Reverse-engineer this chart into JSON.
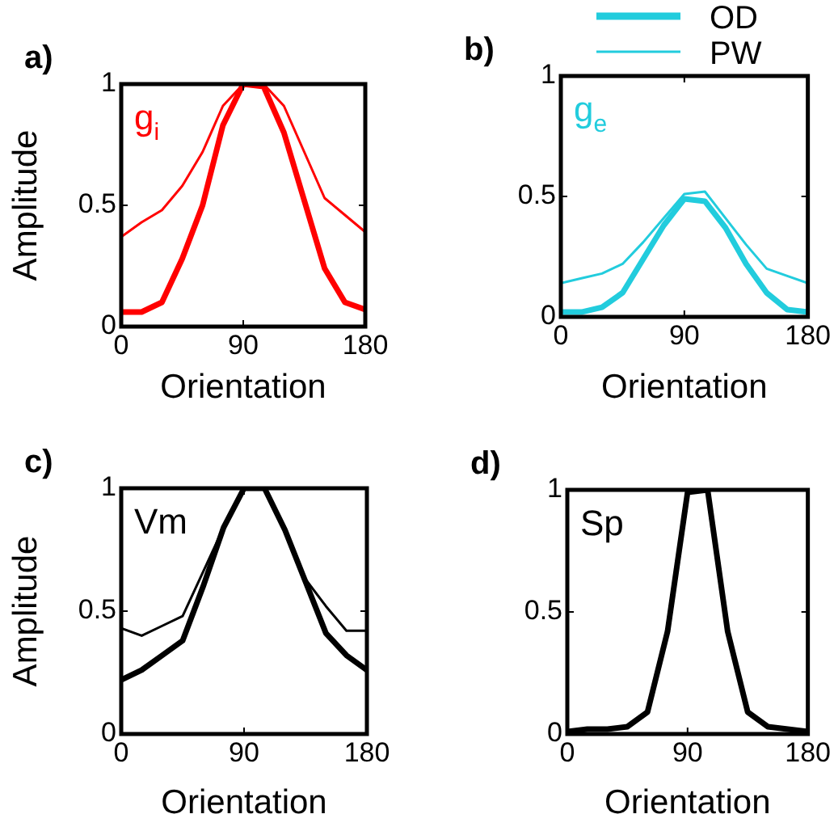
{
  "chart_data": [
    {
      "type": "line",
      "title": "a)",
      "xlabel": "Orientation",
      "ylabel": "Amplitude",
      "annotations": [
        "g$_{i}$"
      ],
      "x": [
        0,
        15,
        30,
        45,
        60,
        75,
        90,
        105,
        120,
        135,
        150,
        165,
        180
      ],
      "xlim": [
        0,
        180
      ],
      "xticks": [
        0,
        90,
        180
      ],
      "ylim": [
        0,
        1
      ],
      "yticks": [
        0,
        0.5,
        1
      ],
      "marker": "none",
      "series": [
        {
          "color": "#ff0000",
          "values": [
            0.06,
            0.06,
            0.1,
            0.28,
            0.5,
            0.83,
            1,
            0.99,
            0.8,
            0.52,
            0.24,
            0.1,
            0.07
          ]
        },
        {
          "color": "#ff0000",
          "values": [
            0.37,
            0.43,
            0.48,
            0.58,
            0.72,
            0.91,
            1,
            1,
            0.91,
            0.72,
            0.53,
            0.46,
            0.39
          ]
        }
      ]
    },
    {
      "type": "line",
      "title": "b)",
      "xlabel": "Orientation",
      "annotations": [
        "g$_{e}$"
      ],
      "x": [
        0,
        15,
        30,
        45,
        60,
        75,
        90,
        105,
        120,
        135,
        150,
        165,
        180
      ],
      "xlim": [
        0,
        180
      ],
      "xticks": [
        0,
        90,
        180
      ],
      "ylim": [
        0,
        1
      ],
      "yticks": [
        0,
        0.5,
        1
      ],
      "marker": "none",
      "legend": "top",
      "series": [
        {
          "name": "OD",
          "color": "#22ccdd",
          "values": [
            0.02,
            0.02,
            0.04,
            0.1,
            0.24,
            0.38,
            0.49,
            0.48,
            0.37,
            0.22,
            0.1,
            0.03,
            0.02
          ]
        },
        {
          "name": "PW",
          "color": "#22ccdd",
          "values": [
            0.14,
            0.16,
            0.18,
            0.22,
            0.31,
            0.41,
            0.51,
            0.52,
            0.41,
            0.3,
            0.2,
            0.17,
            0.14
          ]
        }
      ]
    },
    {
      "type": "line",
      "title": "c)",
      "xlabel": "Orientation",
      "ylabel": "Amplitude",
      "annotations": [
        "Vm"
      ],
      "x": [
        0,
        15,
        30,
        45,
        60,
        75,
        90,
        105,
        120,
        135,
        150,
        165,
        180
      ],
      "xlim": [
        0,
        180
      ],
      "xticks": [
        0,
        90,
        180
      ],
      "ylim": [
        0,
        1
      ],
      "yticks": [
        0,
        0.5,
        1
      ],
      "marker": "none",
      "series": [
        {
          "color": "#000000",
          "values": [
            0.22,
            0.26,
            0.32,
            0.38,
            0.6,
            0.84,
            1,
            1,
            0.83,
            0.62,
            0.41,
            0.32,
            0.26
          ]
        },
        {
          "color": "#000000",
          "values": [
            0.43,
            0.4,
            0.44,
            0.48,
            0.66,
            0.84,
            1,
            1,
            0.84,
            0.63,
            0.52,
            0.42,
            0.42
          ]
        }
      ]
    },
    {
      "type": "line",
      "title": "d)",
      "xlabel": "Orientation",
      "annotations": [
        "Sp"
      ],
      "x": [
        0,
        15,
        30,
        45,
        60,
        75,
        90,
        105,
        120,
        135,
        150,
        165,
        180
      ],
      "xlim": [
        0,
        180
      ],
      "xticks": [
        0,
        90,
        180
      ],
      "ylim": [
        0,
        1
      ],
      "yticks": [
        0,
        0.5,
        1
      ],
      "marker": "none",
      "series": [
        {
          "color": "#000000",
          "values": [
            0.01,
            0.02,
            0.02,
            0.03,
            0.09,
            0.42,
            0.99,
            1,
            0.42,
            0.09,
            0.03,
            0.02,
            0.01
          ]
        }
      ]
    }
  ]
}
